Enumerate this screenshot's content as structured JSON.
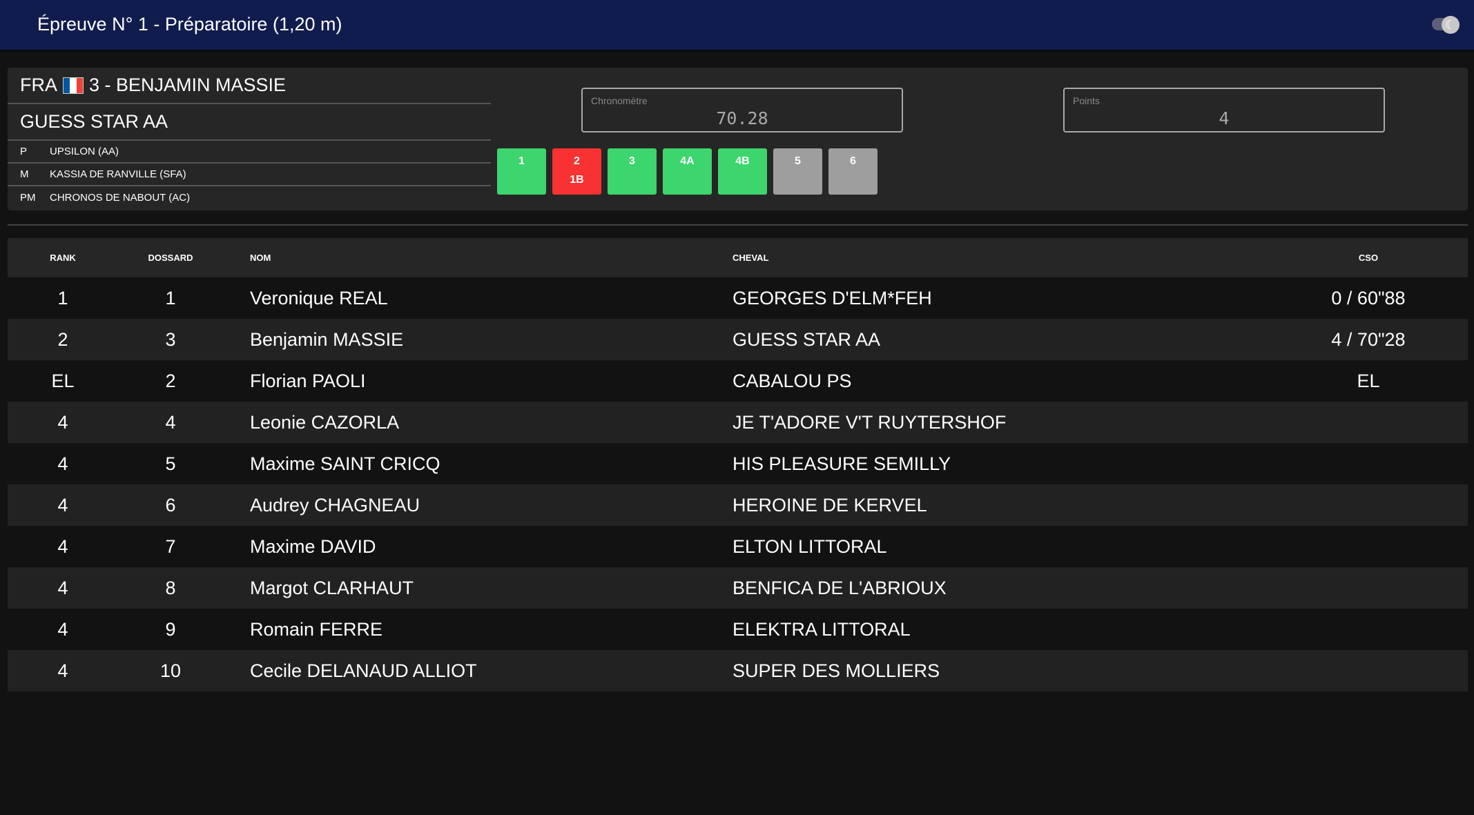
{
  "header": {
    "title": "Épreuve N° 1 - Préparatoire (1,20 m)",
    "theme_toggle_icon": "moon-icon"
  },
  "rider": {
    "nation": "FRA",
    "flag_colors": [
      "#0055a4",
      "#ffffff",
      "#ef4135"
    ],
    "label": "3 - BENJAMIN MASSIE"
  },
  "horse": {
    "name": "GUESS STAR AA",
    "pedigree": [
      {
        "key": "P",
        "value": "UPSILON (AA)"
      },
      {
        "key": "M",
        "value": "KASSIA DE RANVILLE (SFA)"
      },
      {
        "key": "PM",
        "value": "CHRONOS DE NABOUT (AC)"
      }
    ]
  },
  "chrono": {
    "label": "Chronomètre",
    "value": "70.28"
  },
  "points": {
    "label": "Points",
    "value": "4"
  },
  "obstacles": [
    {
      "label": "1",
      "sub": "",
      "status": "clear",
      "color": "#3dd56d"
    },
    {
      "label": "2",
      "sub": "1B",
      "status": "fault",
      "color": "#f83232"
    },
    {
      "label": "3",
      "sub": "",
      "status": "clear",
      "color": "#3dd56d"
    },
    {
      "label": "4A",
      "sub": "",
      "status": "clear",
      "color": "#3dd56d"
    },
    {
      "label": "4B",
      "sub": "",
      "status": "clear",
      "color": "#3dd56d"
    },
    {
      "label": "5",
      "sub": "",
      "status": "pending",
      "color": "#9e9e9e"
    },
    {
      "label": "6",
      "sub": "",
      "status": "pending",
      "color": "#9e9e9e"
    }
  ],
  "table": {
    "headers": {
      "rank": "RANK",
      "dossard": "DOSSARD",
      "nom": "NOM",
      "cheval": "CHEVAL",
      "cso": "CSO"
    },
    "rows": [
      {
        "rank": "1",
        "dossard": "1",
        "nom": "Veronique REAL",
        "cheval": "GEORGES D'ELM*FEH",
        "cso": "0 / 60\"88"
      },
      {
        "rank": "2",
        "dossard": "3",
        "nom": "Benjamin MASSIE",
        "cheval": "GUESS STAR AA",
        "cso": "4 / 70\"28"
      },
      {
        "rank": "EL",
        "dossard": "2",
        "nom": "Florian PAOLI",
        "cheval": "CABALOU PS",
        "cso": "EL"
      },
      {
        "rank": "4",
        "dossard": "4",
        "nom": "Leonie CAZORLA",
        "cheval": "JE T'ADORE V'T RUYTERSHOF",
        "cso": ""
      },
      {
        "rank": "4",
        "dossard": "5",
        "nom": "Maxime SAINT CRICQ",
        "cheval": "HIS PLEASURE SEMILLY",
        "cso": ""
      },
      {
        "rank": "4",
        "dossard": "6",
        "nom": "Audrey CHAGNEAU",
        "cheval": "HEROINE DE KERVEL",
        "cso": ""
      },
      {
        "rank": "4",
        "dossard": "7",
        "nom": "Maxime DAVID",
        "cheval": "ELTON LITTORAL",
        "cso": ""
      },
      {
        "rank": "4",
        "dossard": "8",
        "nom": "Margot CLARHAUT",
        "cheval": "BENFICA DE L'ABRIOUX",
        "cso": ""
      },
      {
        "rank": "4",
        "dossard": "9",
        "nom": "Romain FERRE",
        "cheval": "ELEKTRA LITTORAL",
        "cso": ""
      },
      {
        "rank": "4",
        "dossard": "10",
        "nom": "Cecile DELANAUD ALLIOT",
        "cheval": "SUPER DES MOLLIERS",
        "cso": ""
      }
    ]
  }
}
